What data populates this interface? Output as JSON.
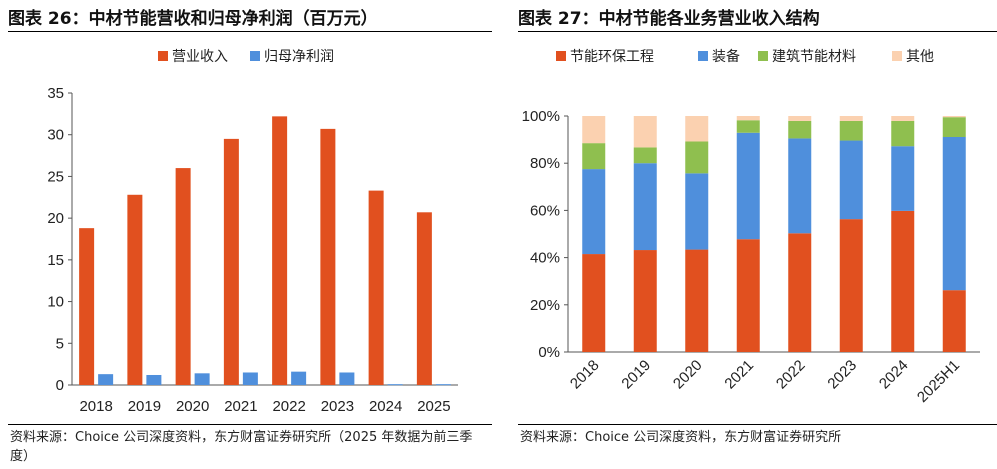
{
  "left": {
    "figure_title": "图表 26：中材节能营收和归母净利润（百万元）",
    "source": "资料来源：Choice 公司深度资料，东方财富证券研究所（2025 年数据为前三季度）",
    "chart_data": {
      "type": "bar",
      "categories": [
        "2018",
        "2019",
        "2020",
        "2021",
        "2022",
        "2023",
        "2024",
        "2025"
      ],
      "series": [
        {
          "name": "营业收入",
          "color": "#e1501f",
          "values": [
            18.8,
            22.8,
            26.0,
            29.5,
            32.2,
            30.7,
            23.3,
            20.7
          ]
        },
        {
          "name": "归母净利润",
          "color": "#4f8fdc",
          "values": [
            1.3,
            1.2,
            1.4,
            1.5,
            1.6,
            1.5,
            0.1,
            0.1
          ]
        }
      ],
      "ylim": [
        0,
        35
      ],
      "yticks": [
        "0",
        "5",
        "10",
        "15",
        "20",
        "25",
        "30",
        "35"
      ],
      "legend_position": "top-center",
      "grid": false
    }
  },
  "right": {
    "figure_title": "图表 27：中材节能各业务营业收入结构",
    "source": "资料来源：Choice 公司深度资料，东方财富证券研究所",
    "chart_data": {
      "type": "bar",
      "stacked": true,
      "categories": [
        "2018",
        "2019",
        "2020",
        "2021",
        "2022",
        "2023",
        "2024",
        "2025H1"
      ],
      "series": [
        {
          "name": "节能环保工程",
          "color": "#e1501f",
          "values": [
            41.5,
            43.2,
            43.4,
            47.8,
            50.3,
            56.3,
            59.8,
            26.2
          ]
        },
        {
          "name": "装备",
          "color": "#4f8fdc",
          "values": [
            36.0,
            36.8,
            32.3,
            45.1,
            40.2,
            33.3,
            27.4,
            64.9
          ]
        },
        {
          "name": "建筑节能材料",
          "color": "#8fbf4f",
          "values": [
            11.0,
            6.7,
            13.5,
            5.3,
            7.4,
            8.3,
            10.7,
            8.4
          ]
        },
        {
          "name": "其他",
          "color": "#fbd1b0",
          "values": [
            11.5,
            13.3,
            10.8,
            1.8,
            2.1,
            2.1,
            2.1,
            0.5
          ]
        }
      ],
      "ylim": [
        0,
        100
      ],
      "yticks": [
        "0%",
        "20%",
        "40%",
        "60%",
        "80%",
        "100%"
      ],
      "legend_position": "top-center",
      "grid": false
    }
  }
}
